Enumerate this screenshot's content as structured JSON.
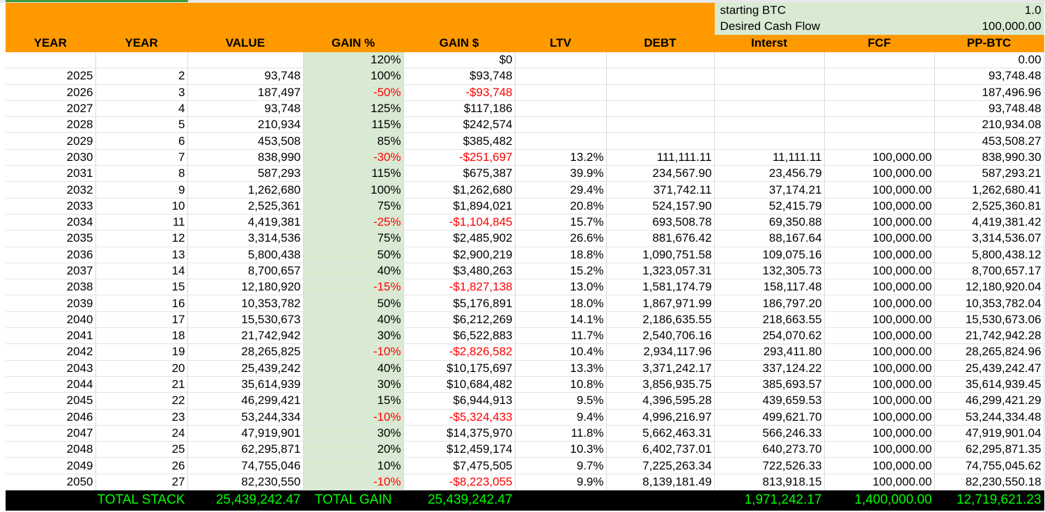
{
  "params": {
    "starting_btc_label": "starting BTC",
    "starting_btc_value": "1.0",
    "cash_flow_label": "Desired Cash Flow",
    "cash_flow_value": "100,000.00"
  },
  "headers": [
    "YEAR",
    "YEAR",
    "VALUE",
    "GAIN %",
    "GAIN $",
    "LTV",
    "DEBT",
    "Interst",
    "FCF",
    "PP-BTC"
  ],
  "rows": [
    {
      "year": "",
      "n": "",
      "value": "",
      "gain_pct": "120%",
      "gain_usd": "$0",
      "ltv": "",
      "debt": "",
      "interest": "",
      "fcf": "",
      "pp": "0.00",
      "neg": false
    },
    {
      "year": "2025",
      "n": "2",
      "value": "93,748",
      "gain_pct": "100%",
      "gain_usd": "$93,748",
      "ltv": "",
      "debt": "",
      "interest": "",
      "fcf": "",
      "pp": "93,748.48",
      "neg": false
    },
    {
      "year": "2026",
      "n": "3",
      "value": "187,497",
      "gain_pct": "-50%",
      "gain_usd": "-$93,748",
      "ltv": "",
      "debt": "",
      "interest": "",
      "fcf": "",
      "pp": "187,496.96",
      "neg": true
    },
    {
      "year": "2027",
      "n": "4",
      "value": "93,748",
      "gain_pct": "125%",
      "gain_usd": "$117,186",
      "ltv": "",
      "debt": "",
      "interest": "",
      "fcf": "",
      "pp": "93,748.48",
      "neg": false
    },
    {
      "year": "2028",
      "n": "5",
      "value": "210,934",
      "gain_pct": "115%",
      "gain_usd": "$242,574",
      "ltv": "",
      "debt": "",
      "interest": "",
      "fcf": "",
      "pp": "210,934.08",
      "neg": false
    },
    {
      "year": "2029",
      "n": "6",
      "value": "453,508",
      "gain_pct": "85%",
      "gain_usd": "$385,482",
      "ltv": "",
      "debt": "",
      "interest": "",
      "fcf": "",
      "pp": "453,508.27",
      "neg": false
    },
    {
      "year": "2030",
      "n": "7",
      "value": "838,990",
      "gain_pct": "-30%",
      "gain_usd": "-$251,697",
      "ltv": "13.2%",
      "debt": "111,111.11",
      "interest": "11,111.11",
      "fcf": "100,000.00",
      "pp": "838,990.30",
      "neg": true
    },
    {
      "year": "2031",
      "n": "8",
      "value": "587,293",
      "gain_pct": "115%",
      "gain_usd": "$675,387",
      "ltv": "39.9%",
      "debt": "234,567.90",
      "interest": "23,456.79",
      "fcf": "100,000.00",
      "pp": "587,293.21",
      "neg": false
    },
    {
      "year": "2032",
      "n": "9",
      "value": "1,262,680",
      "gain_pct": "100%",
      "gain_usd": "$1,262,680",
      "ltv": "29.4%",
      "debt": "371,742.11",
      "interest": "37,174.21",
      "fcf": "100,000.00",
      "pp": "1,262,680.41",
      "neg": false
    },
    {
      "year": "2033",
      "n": "10",
      "value": "2,525,361",
      "gain_pct": "75%",
      "gain_usd": "$1,894,021",
      "ltv": "20.8%",
      "debt": "524,157.90",
      "interest": "52,415.79",
      "fcf": "100,000.00",
      "pp": "2,525,360.81",
      "neg": false
    },
    {
      "year": "2034",
      "n": "11",
      "value": "4,419,381",
      "gain_pct": "-25%",
      "gain_usd": "-$1,104,845",
      "ltv": "15.7%",
      "debt": "693,508.78",
      "interest": "69,350.88",
      "fcf": "100,000.00",
      "pp": "4,419,381.42",
      "neg": true
    },
    {
      "year": "2035",
      "n": "12",
      "value": "3,314,536",
      "gain_pct": "75%",
      "gain_usd": "$2,485,902",
      "ltv": "26.6%",
      "debt": "881,676.42",
      "interest": "88,167.64",
      "fcf": "100,000.00",
      "pp": "3,314,536.07",
      "neg": false
    },
    {
      "year": "2036",
      "n": "13",
      "value": "5,800,438",
      "gain_pct": "50%",
      "gain_usd": "$2,900,219",
      "ltv": "18.8%",
      "debt": "1,090,751.58",
      "interest": "109,075.16",
      "fcf": "100,000.00",
      "pp": "5,800,438.12",
      "neg": false
    },
    {
      "year": "2037",
      "n": "14",
      "value": "8,700,657",
      "gain_pct": "40%",
      "gain_usd": "$3,480,263",
      "ltv": "15.2%",
      "debt": "1,323,057.31",
      "interest": "132,305.73",
      "fcf": "100,000.00",
      "pp": "8,700,657.17",
      "neg": false
    },
    {
      "year": "2038",
      "n": "15",
      "value": "12,180,920",
      "gain_pct": "-15%",
      "gain_usd": "-$1,827,138",
      "ltv": "13.0%",
      "debt": "1,581,174.79",
      "interest": "158,117.48",
      "fcf": "100,000.00",
      "pp": "12,180,920.04",
      "neg": true
    },
    {
      "year": "2039",
      "n": "16",
      "value": "10,353,782",
      "gain_pct": "50%",
      "gain_usd": "$5,176,891",
      "ltv": "18.0%",
      "debt": "1,867,971.99",
      "interest": "186,797.20",
      "fcf": "100,000.00",
      "pp": "10,353,782.04",
      "neg": false
    },
    {
      "year": "2040",
      "n": "17",
      "value": "15,530,673",
      "gain_pct": "40%",
      "gain_usd": "$6,212,269",
      "ltv": "14.1%",
      "debt": "2,186,635.55",
      "interest": "218,663.55",
      "fcf": "100,000.00",
      "pp": "15,530,673.06",
      "neg": false
    },
    {
      "year": "2041",
      "n": "18",
      "value": "21,742,942",
      "gain_pct": "30%",
      "gain_usd": "$6,522,883",
      "ltv": "11.7%",
      "debt": "2,540,706.16",
      "interest": "254,070.62",
      "fcf": "100,000.00",
      "pp": "21,742,942.28",
      "neg": false
    },
    {
      "year": "2042",
      "n": "19",
      "value": "28,265,825",
      "gain_pct": "-10%",
      "gain_usd": "-$2,826,582",
      "ltv": "10.4%",
      "debt": "2,934,117.96",
      "interest": "293,411.80",
      "fcf": "100,000.00",
      "pp": "28,265,824.96",
      "neg": true
    },
    {
      "year": "2043",
      "n": "20",
      "value": "25,439,242",
      "gain_pct": "40%",
      "gain_usd": "$10,175,697",
      "ltv": "13.3%",
      "debt": "3,371,242.17",
      "interest": "337,124.22",
      "fcf": "100,000.00",
      "pp": "25,439,242.47",
      "neg": false
    },
    {
      "year": "2044",
      "n": "21",
      "value": "35,614,939",
      "gain_pct": "30%",
      "gain_usd": "$10,684,482",
      "ltv": "10.8%",
      "debt": "3,856,935.75",
      "interest": "385,693.57",
      "fcf": "100,000.00",
      "pp": "35,614,939.45",
      "neg": false
    },
    {
      "year": "2045",
      "n": "22",
      "value": "46,299,421",
      "gain_pct": "15%",
      "gain_usd": "$6,944,913",
      "ltv": "9.5%",
      "debt": "4,396,595.28",
      "interest": "439,659.53",
      "fcf": "100,000.00",
      "pp": "46,299,421.29",
      "neg": false
    },
    {
      "year": "2046",
      "n": "23",
      "value": "53,244,334",
      "gain_pct": "-10%",
      "gain_usd": "-$5,324,433",
      "ltv": "9.4%",
      "debt": "4,996,216.97",
      "interest": "499,621.70",
      "fcf": "100,000.00",
      "pp": "53,244,334.48",
      "neg": true
    },
    {
      "year": "2047",
      "n": "24",
      "value": "47,919,901",
      "gain_pct": "30%",
      "gain_usd": "$14,375,970",
      "ltv": "11.8%",
      "debt": "5,662,463.31",
      "interest": "566,246.33",
      "fcf": "100,000.00",
      "pp": "47,919,901.04",
      "neg": false
    },
    {
      "year": "2048",
      "n": "25",
      "value": "62,295,871",
      "gain_pct": "20%",
      "gain_usd": "$12,459,174",
      "ltv": "10.3%",
      "debt": "6,402,737.01",
      "interest": "640,273.70",
      "fcf": "100,000.00",
      "pp": "62,295,871.35",
      "neg": false
    },
    {
      "year": "2049",
      "n": "26",
      "value": "74,755,046",
      "gain_pct": "10%",
      "gain_usd": "$7,475,505",
      "ltv": "9.7%",
      "debt": "7,225,263.34",
      "interest": "722,526.33",
      "fcf": "100,000.00",
      "pp": "74,755,045.62",
      "neg": false
    },
    {
      "year": "2050",
      "n": "27",
      "value": "82,230,550",
      "gain_pct": "-10%",
      "gain_usd": "-$8,223,055",
      "ltv": "9.9%",
      "debt": "8,139,181.49",
      "interest": "813,918.15",
      "fcf": "100,000.00",
      "pp": "82,230,550.18",
      "neg": true
    }
  ],
  "totals": {
    "stack_label": "TOTAL STACK",
    "stack_value": "25,439,242.47",
    "gain_label": "TOTAL GAIN",
    "gain_value": "25,439,242.47",
    "interest_total": "1,971,242.17",
    "fcf_total": "1,400,000.00",
    "pp_total": "12,719,621.23"
  },
  "colors": {
    "header_orange": "#ff9900",
    "gain_column_green": "#d9ead3",
    "negative_red": "#ff0000",
    "total_text_green": "#00ff00",
    "total_background": "#000000"
  }
}
